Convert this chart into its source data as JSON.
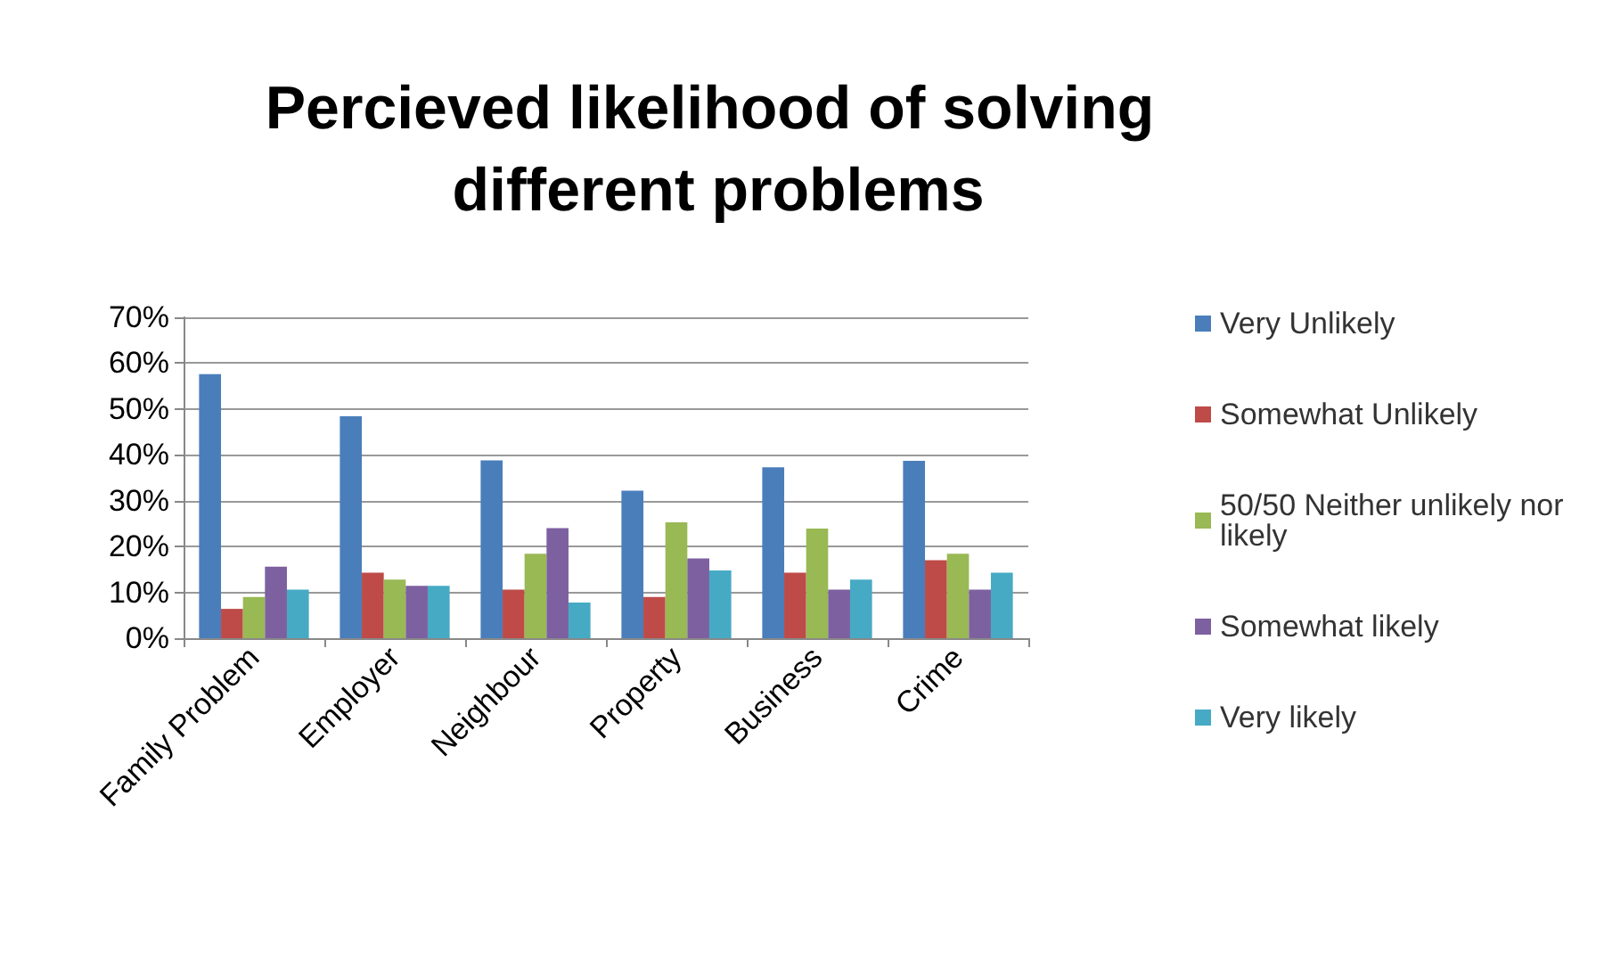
{
  "chart_data": {
    "type": "bar",
    "title": "Percieved likelihood of solving different problems",
    "categories": [
      "Family Problem",
      "Employer",
      "Neighbour",
      "Property",
      "Business",
      "Crime"
    ],
    "series": [
      {
        "name": "Very Unlikely",
        "color": "#4a7ebb",
        "values": [
          57.6,
          48.4,
          38.8,
          32.2,
          37.3,
          38.7
        ]
      },
      {
        "name": "Somewhat Unlikely",
        "color": "#be4b48",
        "values": [
          6.4,
          14.3,
          10.6,
          9,
          14.3,
          17
        ]
      },
      {
        "name": "50/50 Neither unlikely nor likely",
        "color": "#98b954",
        "values": [
          9,
          12.8,
          18.4,
          25.3,
          23.9,
          18.4
        ]
      },
      {
        "name": "Somewhat likely",
        "color": "#7d60a0",
        "values": [
          15.6,
          11.4,
          24,
          17.4,
          10.6,
          10.6
        ]
      },
      {
        "name": "Very likely",
        "color": "#46aac5",
        "values": [
          10.6,
          11.4,
          7.8,
          14.8,
          12.8,
          14.3
        ]
      }
    ],
    "ylim": [
      0,
      70
    ],
    "yticks": [
      {
        "value": 0,
        "label": "0%"
      },
      {
        "value": 10,
        "label": "10%"
      },
      {
        "value": 20,
        "label": "20%"
      },
      {
        "value": 30,
        "label": "30%"
      },
      {
        "value": 40,
        "label": "40%"
      },
      {
        "value": 50,
        "label": "50%"
      },
      {
        "value": 60,
        "label": "60%"
      },
      {
        "value": 70,
        "label": "70%"
      }
    ],
    "grid": "y",
    "legend": "right"
  }
}
